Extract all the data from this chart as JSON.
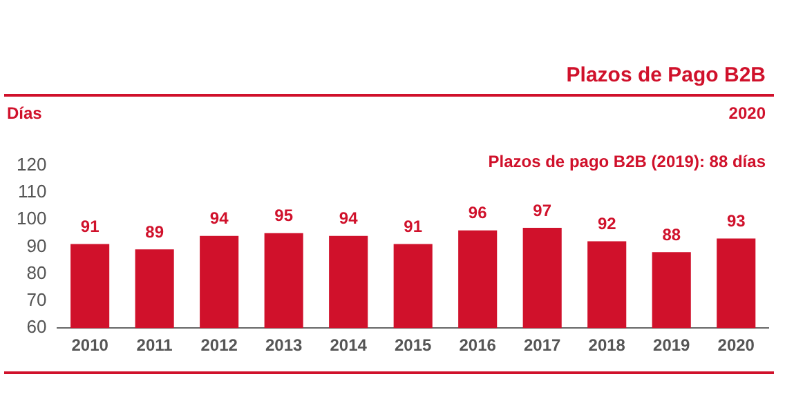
{
  "chart_data": {
    "type": "bar",
    "title": "Plazos de Pago B2B",
    "subtitle": "2020",
    "ylabel": "Días",
    "annotations": [
      "Plazos de pago B2B (2019): 88 días"
    ],
    "categories": [
      "2010",
      "2011",
      "2012",
      "2013",
      "2014",
      "2015",
      "2016",
      "2017",
      "2018",
      "2019",
      "2020"
    ],
    "values": [
      91,
      89,
      94,
      95,
      94,
      91,
      96,
      97,
      92,
      88,
      93
    ],
    "color": "#d0112b",
    "ylim": [
      60,
      120
    ],
    "yticks": [
      60,
      70,
      80,
      90,
      100,
      110,
      120
    ],
    "grid": false,
    "data_labels": true
  }
}
